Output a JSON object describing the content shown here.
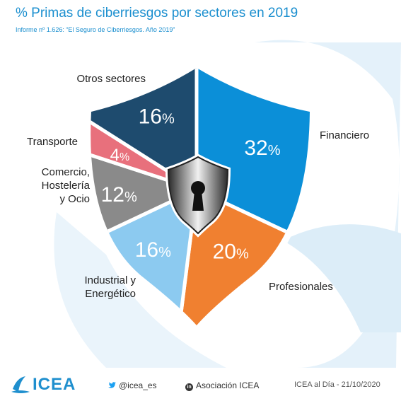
{
  "header": {
    "title": "% Primas de ciberriesgos por sectores en 2019",
    "subtitle": "Informe nº 1.626: “El Seguro de Ciberriesgos. Año 2019”"
  },
  "chart_data": {
    "type": "pie",
    "title": "% Primas de ciberriesgos por sectores en 2019",
    "categories": [
      "Financiero",
      "Profesionales",
      "Industrial y Energético",
      "Comercio, Hostelería y Ocio",
      "Transporte",
      "Otros sectores"
    ],
    "values": [
      32,
      20,
      16,
      12,
      4,
      16
    ],
    "value_labels": [
      "32",
      "20",
      "16",
      "12",
      "4",
      "16"
    ],
    "unit": "%",
    "colors": [
      "#0b8fd8",
      "#f08030",
      "#8ccaf0",
      "#8a8a8a",
      "#e8707c",
      "#1e4b6e"
    ],
    "label_lines": [
      [
        "Financiero"
      ],
      [
        "Profesionales"
      ],
      [
        "Industrial y",
        "Energético"
      ],
      [
        "Comercio,",
        "Hostelería",
        "y Ocio"
      ],
      [
        "Transporte"
      ],
      [
        "Otros sectores"
      ]
    ]
  },
  "footer": {
    "logo_text": "ICEA",
    "twitter_handle": "@icea_es",
    "linkedin_name": "Asociación ICEA",
    "date_text": "ICEA al Día - 21/10/2020",
    "icons": [
      "twitter-icon",
      "linkedin-icon"
    ]
  }
}
